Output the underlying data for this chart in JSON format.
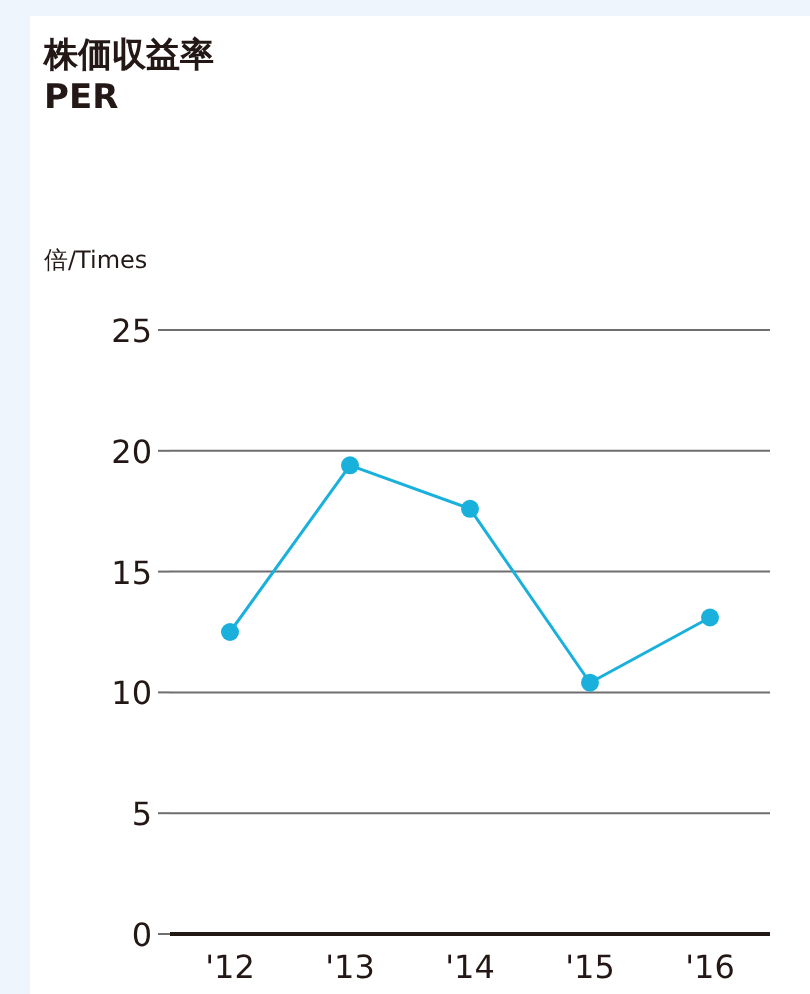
{
  "chart_data": {
    "type": "line",
    "title": "株価収益率",
    "subtitle": "PER",
    "ylabel": "倍/Times",
    "categories": [
      "'12",
      "'13",
      "'14",
      "'15",
      "'16"
    ],
    "series": [
      {
        "color": "#1ab0dc",
        "values": [
          12.5,
          19.4,
          17.6,
          10.4,
          13.1
        ]
      }
    ],
    "ylim": [
      0,
      25
    ],
    "yticks": [
      0,
      5,
      10,
      15,
      20,
      25
    ],
    "grid": "y",
    "marker": "circle",
    "line_style": "solid"
  }
}
